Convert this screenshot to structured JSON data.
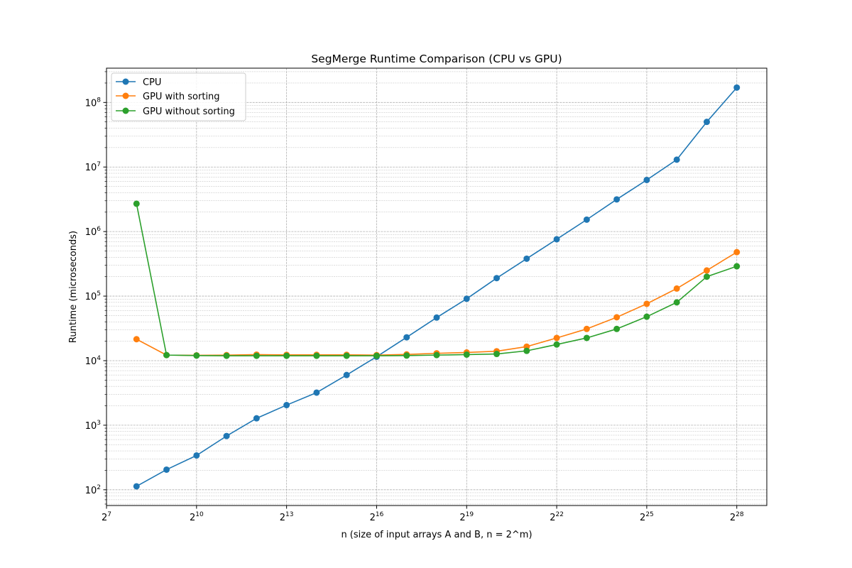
{
  "chart_data": {
    "type": "line",
    "title": "SegMerge Runtime Comparison (CPU vs GPU)",
    "xlabel": "n (size of input arrays A and B, n = 2^m)",
    "ylabel": "Runtime (microseconds)",
    "x_scale": "log2",
    "y_scale": "log10",
    "xlim": [
      128,
      536870912
    ],
    "ylim": [
      57,
      340000000
    ],
    "grid": true,
    "legend_position": "upper-left",
    "x_ticks": [
      {
        "base": "2",
        "exp": "7",
        "value": 128
      },
      {
        "base": "2",
        "exp": "10",
        "value": 1024
      },
      {
        "base": "2",
        "exp": "13",
        "value": 8192
      },
      {
        "base": "2",
        "exp": "16",
        "value": 65536
      },
      {
        "base": "2",
        "exp": "19",
        "value": 524288
      },
      {
        "base": "2",
        "exp": "22",
        "value": 4194304
      },
      {
        "base": "2",
        "exp": "25",
        "value": 33554432
      },
      {
        "base": "2",
        "exp": "28",
        "value": 268435456
      }
    ],
    "y_ticks": [
      {
        "base": "10",
        "exp": "2",
        "value": 100
      },
      {
        "base": "10",
        "exp": "3",
        "value": 1000
      },
      {
        "base": "10",
        "exp": "4",
        "value": 10000
      },
      {
        "base": "10",
        "exp": "5",
        "value": 100000
      },
      {
        "base": "10",
        "exp": "6",
        "value": 1000000
      },
      {
        "base": "10",
        "exp": "7",
        "value": 10000000
      },
      {
        "base": "10",
        "exp": "8",
        "value": 100000000
      }
    ],
    "x": [
      256,
      512,
      1024,
      2048,
      4096,
      8192,
      16384,
      32768,
      65536,
      131072,
      262144,
      524288,
      1048576,
      2097152,
      4194304,
      8388608,
      16777216,
      33554432,
      67108864,
      134217728,
      268435456
    ],
    "series": [
      {
        "name": "CPU",
        "color": "#1f77b4",
        "values": [
          113,
          205,
          340,
          680,
          1280,
          2050,
          3200,
          6000,
          11500,
          23000,
          46500,
          91000,
          190000,
          380000,
          760000,
          1530000,
          3150000,
          6300000,
          13000000,
          50000000,
          170000000
        ]
      },
      {
        "name": "GPU with sorting",
        "color": "#ff7f0e",
        "values": [
          21500,
          12200,
          12100,
          12200,
          12400,
          12300,
          12300,
          12300,
          12200,
          12500,
          13000,
          13400,
          14000,
          16500,
          22500,
          31000,
          47000,
          76000,
          131000,
          250000,
          480000
        ]
      },
      {
        "name": "GPU without sorting",
        "color": "#2ca02c",
        "values": [
          2700000,
          12200,
          12000,
          11900,
          11900,
          11900,
          11900,
          11900,
          11900,
          12000,
          12200,
          12400,
          12700,
          14200,
          17800,
          22500,
          31000,
          48000,
          80000,
          200000,
          290000
        ]
      }
    ]
  }
}
